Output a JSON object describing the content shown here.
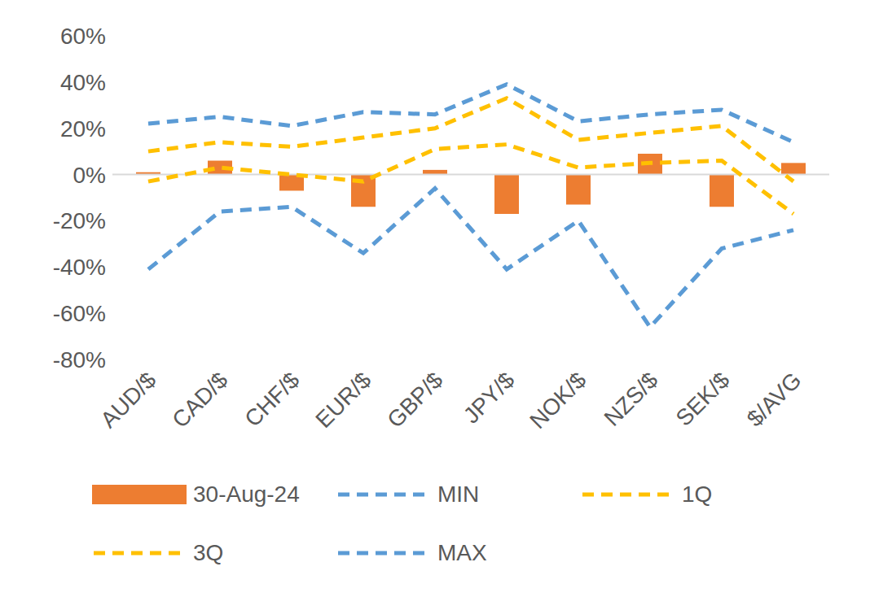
{
  "chart_data": {
    "type": "combo",
    "categories": [
      "AUD/$",
      "CAD/$",
      "CHF/$",
      "EUR/$",
      "GBP/$",
      "JPY/$",
      "NOK/$",
      "NZS/$",
      "SEK/$",
      "$/AVG"
    ],
    "series": [
      {
        "name": "30-Aug-24",
        "type": "bar",
        "color": "#ED7D31",
        "values": [
          1,
          6,
          -7,
          -14,
          2,
          -17,
          -13,
          9,
          -14,
          5
        ]
      },
      {
        "name": "MIN",
        "type": "line",
        "line_style": "dashed",
        "color": "#5B9BD5",
        "values": [
          -41,
          -16,
          -14,
          -34,
          -6,
          -41,
          -20,
          -66,
          -32,
          -24
        ]
      },
      {
        "name": "1Q",
        "type": "line",
        "line_style": "dashed",
        "color": "#FFC000",
        "values": [
          -3,
          3,
          0,
          -3,
          11,
          13,
          3,
          5,
          6,
          -17
        ]
      },
      {
        "name": "3Q",
        "type": "line",
        "line_style": "dashed",
        "color": "#FFC000",
        "values": [
          10,
          14,
          12,
          16,
          20,
          33,
          15,
          18,
          21,
          -3
        ]
      },
      {
        "name": "MAX",
        "type": "line",
        "line_style": "dashed",
        "color": "#5B9BD5",
        "values": [
          22,
          25,
          21,
          27,
          26,
          39,
          23,
          26,
          28,
          14
        ]
      }
    ],
    "ylim": [
      -80,
      60
    ],
    "yticks": [
      {
        "value": -80,
        "label": "-80%"
      },
      {
        "value": -60,
        "label": "-60%"
      },
      {
        "value": -40,
        "label": "-40%"
      },
      {
        "value": -20,
        "label": "-20%"
      },
      {
        "value": 0,
        "label": "0%"
      },
      {
        "value": 20,
        "label": "20%"
      },
      {
        "value": 40,
        "label": "40%"
      },
      {
        "value": 60,
        "label": "60%"
      }
    ],
    "grid": false,
    "legend": "bottom"
  }
}
